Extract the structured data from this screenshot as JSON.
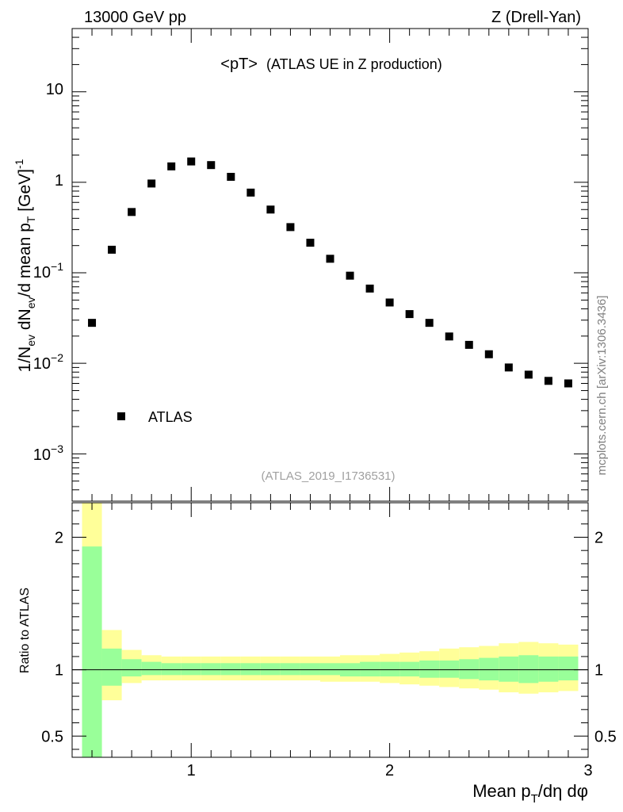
{
  "header": {
    "left_label": "13000 GeV pp",
    "right_label": "Z (Drell-Yan)"
  },
  "side_label": "mcplots.cern.ch [arXiv:1306.3436]",
  "chart_data": [
    {
      "type": "scatter",
      "name": "main",
      "title_main": "<pT>",
      "title_sub": "(ATLAS UE in Z production)",
      "ylabel": "1/N_ev dN_ev/d mean p_T [GeV]^-1",
      "yscale": "log",
      "ylim": [
        0.0003,
        50
      ],
      "xlim": [
        0.4,
        3.0
      ],
      "y_tick_labels": [
        "10^-3",
        "10^-2",
        "10^-1",
        "1",
        "10"
      ],
      "legend": {
        "entry": "ATLAS",
        "position": "bottom-left"
      },
      "annotation": "(ATLAS_2019_I1736531)",
      "series": [
        {
          "name": "ATLAS",
          "x": [
            0.5,
            0.6,
            0.7,
            0.8,
            0.9,
            1.0,
            1.1,
            1.2,
            1.3,
            1.4,
            1.5,
            1.6,
            1.7,
            1.8,
            1.9,
            2.0,
            2.1,
            2.2,
            2.3,
            2.4,
            2.5,
            2.6,
            2.7,
            2.8,
            2.9
          ],
          "y": [
            0.028,
            0.18,
            0.47,
            0.97,
            1.5,
            1.7,
            1.55,
            1.15,
            0.77,
            0.5,
            0.32,
            0.215,
            0.143,
            0.093,
            0.067,
            0.047,
            0.035,
            0.028,
            0.0198,
            0.016,
            0.0126,
            0.009,
            0.0075,
            0.0064,
            0.006
          ]
        }
      ]
    },
    {
      "type": "area",
      "name": "ratio",
      "ylabel": "Ratio to ATLAS",
      "xlabel": "Mean p_T/dη dφ",
      "ylim": [
        0.34,
        2.26
      ],
      "xlim": [
        0.4,
        3.0
      ],
      "y_tick_labels": [
        "0.5",
        "1",
        "2"
      ],
      "x_tick_labels": [
        "1",
        "2",
        "3"
      ],
      "bin_edges": [
        0.45,
        0.55,
        0.65,
        0.75,
        0.85,
        0.95,
        1.05,
        1.15,
        1.25,
        1.35,
        1.45,
        1.55,
        1.65,
        1.75,
        1.85,
        1.95,
        2.05,
        2.15,
        2.25,
        2.35,
        2.45,
        2.55,
        2.65,
        2.75,
        2.85,
        2.95
      ],
      "yellow_high": [
        2.3,
        1.3,
        1.15,
        1.11,
        1.1,
        1.1,
        1.1,
        1.1,
        1.1,
        1.1,
        1.1,
        1.1,
        1.1,
        1.11,
        1.11,
        1.12,
        1.13,
        1.14,
        1.16,
        1.17,
        1.18,
        1.2,
        1.21,
        1.2,
        1.19
      ],
      "yellow_low": [
        0.3,
        0.77,
        0.9,
        0.92,
        0.92,
        0.92,
        0.92,
        0.92,
        0.92,
        0.92,
        0.92,
        0.92,
        0.91,
        0.91,
        0.91,
        0.9,
        0.89,
        0.88,
        0.87,
        0.86,
        0.85,
        0.83,
        0.82,
        0.83,
        0.84
      ],
      "green_high": [
        1.93,
        1.16,
        1.08,
        1.06,
        1.05,
        1.05,
        1.05,
        1.05,
        1.05,
        1.05,
        1.05,
        1.05,
        1.05,
        1.05,
        1.06,
        1.06,
        1.06,
        1.07,
        1.07,
        1.08,
        1.09,
        1.1,
        1.11,
        1.1,
        1.1
      ],
      "green_low": [
        0.3,
        0.88,
        0.95,
        0.96,
        0.96,
        0.96,
        0.96,
        0.96,
        0.96,
        0.96,
        0.96,
        0.96,
        0.96,
        0.95,
        0.95,
        0.95,
        0.95,
        0.94,
        0.94,
        0.93,
        0.92,
        0.91,
        0.9,
        0.91,
        0.92
      ],
      "reference_line": 1,
      "colors": {
        "yellow": "#ffff99",
        "green": "#99ff99",
        "marker": "#000000"
      }
    }
  ]
}
